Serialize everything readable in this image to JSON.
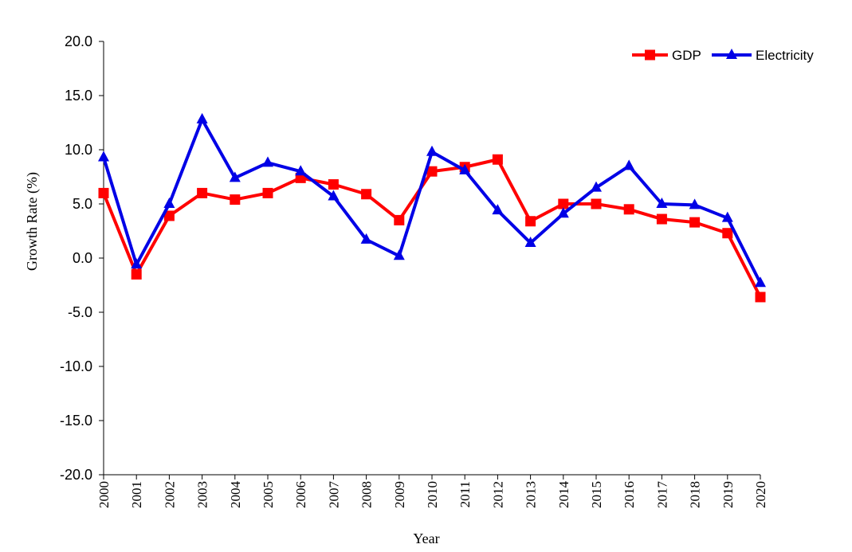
{
  "chart_data": {
    "type": "line",
    "xlabel": "Year",
    "ylabel": "Growth Rate (%)",
    "ylim": [
      -20,
      20
    ],
    "ytick_step": 5,
    "ytick_labels": [
      "-20.0",
      "-15.0",
      "-10.0",
      "-5.0",
      "0.0",
      "5.0",
      "10.0",
      "15.0",
      "20.0"
    ],
    "categories": [
      "2000",
      "2001",
      "2002",
      "2003",
      "2004",
      "2005",
      "2006",
      "2007",
      "2008",
      "2009",
      "2010",
      "2011",
      "2012",
      "2013",
      "2014",
      "2015",
      "2016",
      "2017",
      "2018",
      "2019",
      "2020"
    ],
    "legend_position": "top-right",
    "grid": false,
    "series": [
      {
        "name": "GDP",
        "color": "#ff0000",
        "marker": "square",
        "values": [
          6.0,
          -1.5,
          3.9,
          6.0,
          5.4,
          6.0,
          7.4,
          6.8,
          5.9,
          3.5,
          8.0,
          8.4,
          9.1,
          3.4,
          5.0,
          5.0,
          4.5,
          3.6,
          3.3,
          2.3,
          -3.6
        ]
      },
      {
        "name": "Electricity",
        "color": "#0000e6",
        "marker": "triangle",
        "values": [
          9.3,
          -0.6,
          5.0,
          12.8,
          7.4,
          8.8,
          8.0,
          5.7,
          1.7,
          0.2,
          9.8,
          8.1,
          4.4,
          1.4,
          4.1,
          6.5,
          8.5,
          5.0,
          4.9,
          3.7,
          -2.3
        ]
      }
    ]
  }
}
